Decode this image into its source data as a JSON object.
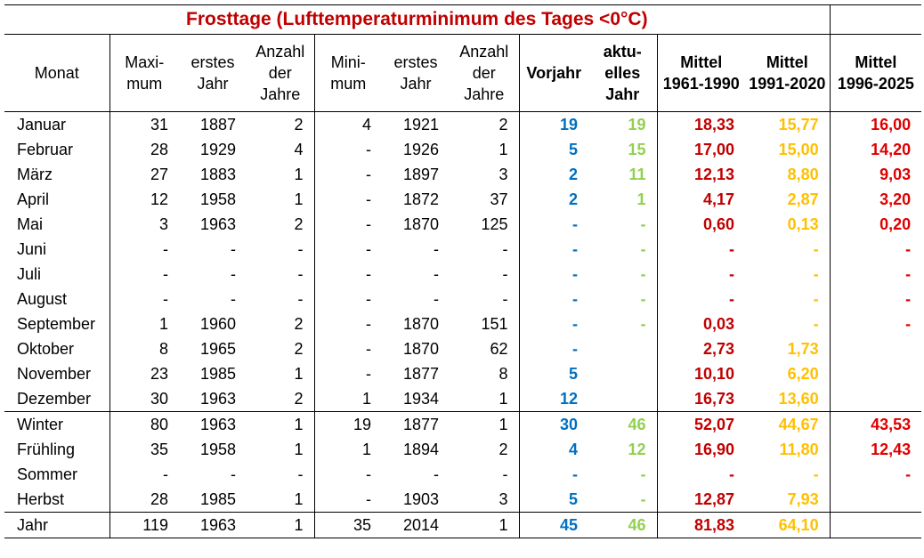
{
  "title": "Frosttage (Lufttemperaturminimum des Tages <0°C)",
  "headers": {
    "monat": "Monat",
    "maximum": [
      "Maxi-",
      "mum"
    ],
    "erstes_jahr_max": [
      "erstes",
      "Jahr"
    ],
    "anzahl_max": [
      "Anzahl",
      "der",
      "Jahre"
    ],
    "minimum": [
      "Mini-",
      "mum"
    ],
    "erstes_jahr_min": [
      "erstes",
      "Jahr"
    ],
    "anzahl_min": [
      "Anzahl",
      "der",
      "Jahre"
    ],
    "vorjahr": "Vorjahr",
    "aktuelles_jahr": [
      "aktu-",
      "elles",
      "Jahr"
    ],
    "mittel_1961": [
      "Mittel",
      "1961-1990"
    ],
    "mittel_1991": [
      "Mittel",
      "1991-2020"
    ],
    "mittel_1996": [
      "Mittel",
      "1996-2025"
    ]
  },
  "colors": {
    "title": "#c00000",
    "vorjahr": "#0070c0",
    "aktuelles_jahr": "#92d050",
    "mittel_1961": "#c00000",
    "mittel_1991": "#ffc000",
    "mittel_1996": "#e00000"
  },
  "rows": [
    {
      "monat": "Januar",
      "max": "31",
      "max_jahr": "1887",
      "max_anz": "2",
      "min": "4",
      "min_jahr": "1921",
      "min_anz": "2",
      "vorjahr": "19",
      "aktuell": "19",
      "m1": "18,33",
      "m2": "15,77",
      "m3": "16,00"
    },
    {
      "monat": "Februar",
      "max": "28",
      "max_jahr": "1929",
      "max_anz": "4",
      "min": "-",
      "min_jahr": "1926",
      "min_anz": "1",
      "vorjahr": "5",
      "aktuell": "15",
      "m1": "17,00",
      "m2": "15,00",
      "m3": "14,20"
    },
    {
      "monat": "März",
      "max": "27",
      "max_jahr": "1883",
      "max_anz": "1",
      "min": "-",
      "min_jahr": "1897",
      "min_anz": "3",
      "vorjahr": "2",
      "aktuell": "11",
      "m1": "12,13",
      "m2": "8,80",
      "m3": "9,03"
    },
    {
      "monat": "April",
      "max": "12",
      "max_jahr": "1958",
      "max_anz": "1",
      "min": "-",
      "min_jahr": "1872",
      "min_anz": "37",
      "vorjahr": "2",
      "aktuell": "1",
      "m1": "4,17",
      "m2": "2,87",
      "m3": "3,20"
    },
    {
      "monat": "Mai",
      "max": "3",
      "max_jahr": "1963",
      "max_anz": "2",
      "min": "-",
      "min_jahr": "1870",
      "min_anz": "125",
      "vorjahr": "-",
      "aktuell": "-",
      "m1": "0,60",
      "m2": "0,13",
      "m3": "0,20"
    },
    {
      "monat": "Juni",
      "max": "-",
      "max_jahr": "-",
      "max_anz": "-",
      "min": "-",
      "min_jahr": "-",
      "min_anz": "-",
      "vorjahr": "-",
      "aktuell": "-",
      "m1": "-",
      "m2": "-",
      "m3": "-"
    },
    {
      "monat": "Juli",
      "max": "-",
      "max_jahr": "-",
      "max_anz": "-",
      "min": "-",
      "min_jahr": "-",
      "min_anz": "-",
      "vorjahr": "-",
      "aktuell": "-",
      "m1": "-",
      "m2": "-",
      "m3": "-"
    },
    {
      "monat": "August",
      "max": "-",
      "max_jahr": "-",
      "max_anz": "-",
      "min": "-",
      "min_jahr": "-",
      "min_anz": "-",
      "vorjahr": "-",
      "aktuell": "-",
      "m1": "-",
      "m2": "-",
      "m3": "-"
    },
    {
      "monat": "September",
      "max": "1",
      "max_jahr": "1960",
      "max_anz": "2",
      "min": "-",
      "min_jahr": "1870",
      "min_anz": "151",
      "vorjahr": "-",
      "aktuell": "-",
      "m1": "0,03",
      "m2": "-",
      "m3": "-"
    },
    {
      "monat": "Oktober",
      "max": "8",
      "max_jahr": "1965",
      "max_anz": "2",
      "min": "-",
      "min_jahr": "1870",
      "min_anz": "62",
      "vorjahr": "-",
      "aktuell": "",
      "m1": "2,73",
      "m2": "1,73",
      "m3": ""
    },
    {
      "monat": "November",
      "max": "23",
      "max_jahr": "1985",
      "max_anz": "1",
      "min": "-",
      "min_jahr": "1877",
      "min_anz": "8",
      "vorjahr": "5",
      "aktuell": "",
      "m1": "10,10",
      "m2": "6,20",
      "m3": ""
    },
    {
      "monat": "Dezember",
      "max": "30",
      "max_jahr": "1963",
      "max_anz": "2",
      "min": "1",
      "min_jahr": "1934",
      "min_anz": "1",
      "vorjahr": "12",
      "aktuell": "",
      "m1": "16,73",
      "m2": "13,60",
      "m3": ""
    },
    {
      "monat": "Winter",
      "max": "80",
      "max_jahr": "1963",
      "max_anz": "1",
      "min": "19",
      "min_jahr": "1877",
      "min_anz": "1",
      "vorjahr": "30",
      "aktuell": "46",
      "m1": "52,07",
      "m2": "44,67",
      "m3": "43,53"
    },
    {
      "monat": "Frühling",
      "max": "35",
      "max_jahr": "1958",
      "max_anz": "1",
      "min": "1",
      "min_jahr": "1894",
      "min_anz": "2",
      "vorjahr": "4",
      "aktuell": "12",
      "m1": "16,90",
      "m2": "11,80",
      "m3": "12,43"
    },
    {
      "monat": "Sommer",
      "max": "-",
      "max_jahr": "-",
      "max_anz": "-",
      "min": "-",
      "min_jahr": "-",
      "min_anz": "-",
      "vorjahr": "-",
      "aktuell": "-",
      "m1": "-",
      "m2": "-",
      "m3": "-"
    },
    {
      "monat": "Herbst",
      "max": "28",
      "max_jahr": "1985",
      "max_anz": "1",
      "min": "-",
      "min_jahr": "1903",
      "min_anz": "3",
      "vorjahr": "5",
      "aktuell": "-",
      "m1": "12,87",
      "m2": "7,93",
      "m3": ""
    },
    {
      "monat": "Jahr",
      "max": "119",
      "max_jahr": "1963",
      "max_anz": "1",
      "min": "35",
      "min_jahr": "2014",
      "min_anz": "1",
      "vorjahr": "45",
      "aktuell": "46",
      "m1": "81,83",
      "m2": "64,10",
      "m3": ""
    }
  ]
}
